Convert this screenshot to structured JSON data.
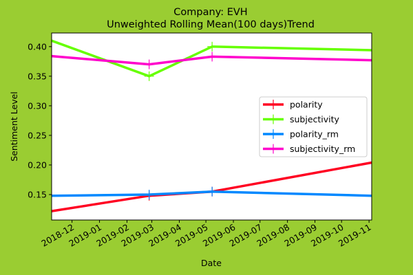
{
  "chart_data": {
    "type": "line",
    "title": [
      "Company: EVH",
      "Unweighted Rolling Mean(100 days)Trend"
    ],
    "xlabel": "Date",
    "ylabel": "Sentiment Level",
    "xlim": [
      "2018-11-08",
      "2019-11-04"
    ],
    "ylim": [
      0.107,
      0.423
    ],
    "grid": false,
    "legend_position": "center-right",
    "x_ticks": [
      "2018-12",
      "2019-01",
      "2019-02",
      "2019-03",
      "2019-04",
      "2019-05",
      "2019-06",
      "2019-07",
      "2019-08",
      "2019-09",
      "2019-10",
      "2019-11"
    ],
    "y_ticks": [
      "0.15",
      "0.20",
      "0.25",
      "0.30",
      "0.35",
      "0.40"
    ],
    "x": [
      "2018-11-08",
      "2019-02-26",
      "2019-05-08",
      "2019-11-04"
    ],
    "series": [
      {
        "name": "polarity",
        "color": "#ff0022",
        "values": [
          0.122,
          0.148,
          0.155,
          0.204
        ]
      },
      {
        "name": "subjectivity",
        "color": "#66ff00",
        "values": [
          0.41,
          0.35,
          0.4,
          0.394
        ]
      },
      {
        "name": "polarity_rm",
        "color": "#0088ff",
        "values": [
          0.148,
          0.15,
          0.155,
          0.148
        ]
      },
      {
        "name": "subjectivity_rm",
        "color": "#ff00cc",
        "values": [
          0.384,
          0.37,
          0.383,
          0.377
        ]
      }
    ]
  },
  "background_color": "#9acd32",
  "plot_background_color": "#ffffff"
}
